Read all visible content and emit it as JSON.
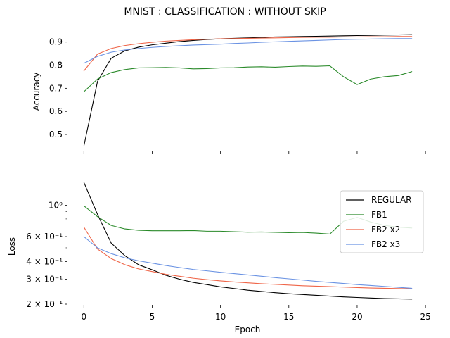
{
  "chart_data": {
    "title": "MNIST : CLASSIFICATION : WITHOUT SKIP",
    "xlabel": "Epoch",
    "x_ticks": [
      "0",
      "5",
      "10",
      "15",
      "20",
      "25"
    ],
    "xlim": [
      -1.2,
      25.2
    ],
    "legend": {
      "placement": "upper-right of loss panel"
    },
    "series_styles": [
      {
        "name": "REGULAR",
        "color": "#000000"
      },
      {
        "name": "FB1",
        "color": "#2a8a2a"
      },
      {
        "name": "FB2 x2",
        "color": "#ef6548"
      },
      {
        "name": "FB2 x3",
        "color": "#6b93e3"
      }
    ],
    "panels": [
      {
        "type": "line",
        "ylabel": "Accuracy",
        "ylim": [
          0.43,
          0.96
        ],
        "yscale": "linear",
        "y_ticks": [
          {
            "value": 0.5,
            "label": "0.5"
          },
          {
            "value": 0.6,
            "label": "0.6"
          },
          {
            "value": 0.7,
            "label": "0.7"
          },
          {
            "value": 0.8,
            "label": "0.8"
          },
          {
            "value": 0.9,
            "label": "0.9"
          }
        ],
        "series": [
          {
            "values": [
              0.45,
              0.73,
              0.83,
              0.862,
              0.878,
              0.888,
              0.895,
              0.902,
              0.907,
              0.911,
              0.914,
              0.916,
              0.918,
              0.92,
              0.922,
              0.923,
              0.924,
              0.925,
              0.926,
              0.927,
              0.928,
              0.929,
              0.93,
              0.931,
              0.932
            ]
          },
          {
            "values": [
              0.685,
              0.74,
              0.768,
              0.781,
              0.788,
              0.789,
              0.79,
              0.788,
              0.784,
              0.785,
              0.788,
              0.789,
              0.792,
              0.793,
              0.791,
              0.794,
              0.796,
              0.795,
              0.797,
              0.75,
              0.716,
              0.74,
              0.75,
              0.755,
              0.772
            ]
          },
          {
            "values": [
              0.775,
              0.848,
              0.872,
              0.885,
              0.893,
              0.899,
              0.904,
              0.907,
              0.91,
              0.912,
              0.914,
              0.915,
              0.916,
              0.917,
              0.918,
              0.919,
              0.92,
              0.921,
              0.921,
              0.922,
              0.922,
              0.923,
              0.923,
              0.924,
              0.924
            ]
          },
          {
            "values": [
              0.808,
              0.838,
              0.856,
              0.866,
              0.872,
              0.877,
              0.881,
              0.884,
              0.887,
              0.889,
              0.891,
              0.894,
              0.896,
              0.899,
              0.901,
              0.903,
              0.905,
              0.907,
              0.909,
              0.911,
              0.912,
              0.913,
              0.914,
              0.915,
              0.915
            ]
          }
        ]
      },
      {
        "type": "line",
        "ylabel": "Loss",
        "ylim": [
          0.2,
          1.5
        ],
        "yscale": "log",
        "y_ticks": [
          {
            "value": 0.2,
            "label": "2 × 10⁻¹"
          },
          {
            "value": 0.3,
            "label": "3 × 10⁻¹"
          },
          {
            "value": 0.4,
            "label": "4 × 10⁻¹"
          },
          {
            "value": 0.6,
            "label": "6 × 10⁻¹"
          },
          {
            "value": 1.0,
            "label": "10⁰"
          }
        ],
        "minor_ticks": [
          0.5,
          0.7,
          0.8,
          0.9
        ],
        "series": [
          {
            "values": [
              1.45,
              0.86,
              0.54,
              0.44,
              0.38,
              0.35,
              0.32,
              0.3,
              0.285,
              0.275,
              0.265,
              0.258,
              0.251,
              0.246,
              0.241,
              0.237,
              0.234,
              0.231,
              0.228,
              0.225,
              0.223,
              0.221,
              0.219,
              0.218,
              0.217
            ]
          },
          {
            "values": [
              0.99,
              0.83,
              0.72,
              0.68,
              0.665,
              0.66,
              0.66,
              0.66,
              0.662,
              0.655,
              0.655,
              0.65,
              0.645,
              0.647,
              0.643,
              0.64,
              0.642,
              0.635,
              0.625,
              0.77,
              0.82,
              0.76,
              0.72,
              0.7,
              0.69
            ]
          },
          {
            "values": [
              0.7,
              0.49,
              0.42,
              0.38,
              0.355,
              0.34,
              0.325,
              0.315,
              0.305,
              0.298,
              0.292,
              0.287,
              0.283,
              0.279,
              0.276,
              0.273,
              0.27,
              0.268,
              0.266,
              0.264,
              0.262,
              0.26,
              0.259,
              0.258,
              0.257
            ]
          },
          {
            "values": [
              0.6,
              0.5,
              0.455,
              0.425,
              0.405,
              0.39,
              0.375,
              0.363,
              0.352,
              0.344,
              0.336,
              0.329,
              0.322,
              0.315,
              0.308,
              0.302,
              0.296,
              0.29,
              0.285,
              0.28,
              0.275,
              0.271,
              0.267,
              0.263,
              0.259
            ]
          }
        ]
      }
    ]
  }
}
